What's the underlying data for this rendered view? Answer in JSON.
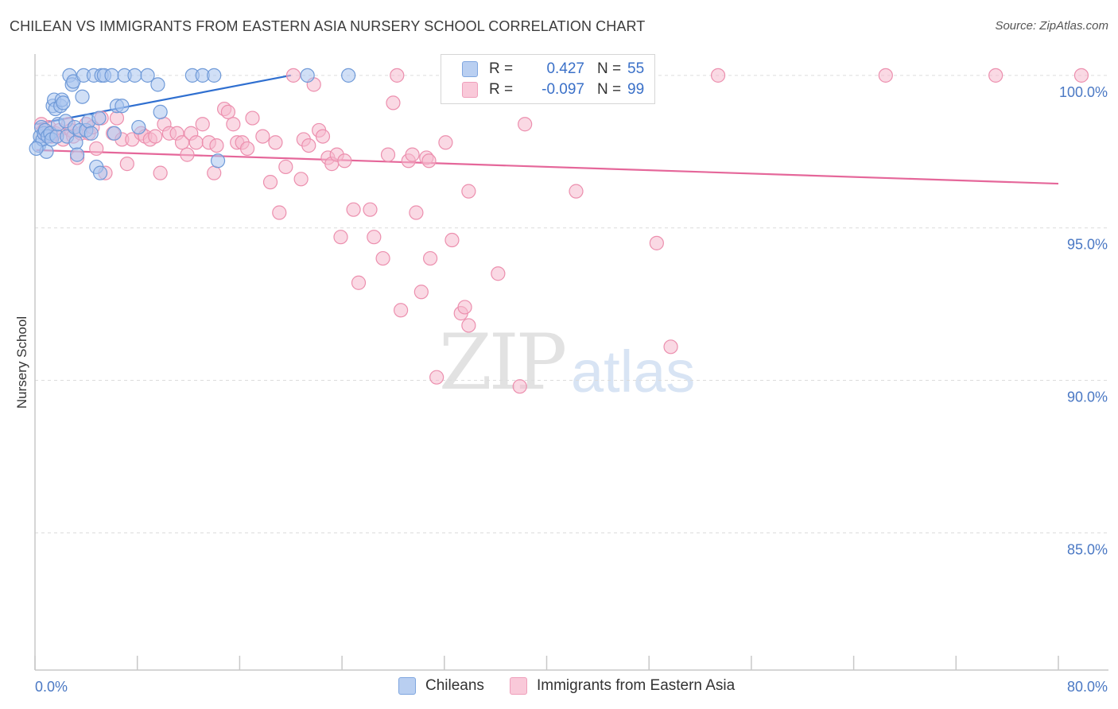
{
  "header": {
    "title": "CHILEAN VS IMMIGRANTS FROM EASTERN ASIA NURSERY SCHOOL CORRELATION CHART",
    "source": "Source: ZipAtlas.com"
  },
  "watermark": {
    "zip": "ZIP",
    "atlas": "atlas"
  },
  "legend": {
    "row1": {
      "r_label": "R =",
      "r_value": "0.427",
      "n_label": "N =",
      "n_value": "55"
    },
    "row2": {
      "r_label": "R =",
      "r_value": "-0.097",
      "n_label": "N =",
      "n_value": "99"
    }
  },
  "bottom_legend": {
    "series1": "Chileans",
    "series2": "Immigrants from Eastern Asia"
  },
  "colors": {
    "blue_fill": "#a9c4ee",
    "blue_stroke": "#6f9ad8",
    "blue_line": "#2f6fd0",
    "pink_fill": "#f6b9cd",
    "pink_stroke": "#ec8fae",
    "pink_line": "#e5679a",
    "grid": "#dcdcdc",
    "axis": "#c8c8c8",
    "tick_text": "#4a78c4"
  },
  "chart_data": {
    "type": "scatter",
    "title": "CHILEAN VS IMMIGRANTS FROM EASTERN ASIA NURSERY SCHOOL CORRELATION CHART",
    "xlabel": "",
    "ylabel": "Nursery School",
    "xlim": [
      0,
      80
    ],
    "ylim": [
      80.5,
      100.7
    ],
    "x_tick_labels": [
      "0.0%",
      "80.0%"
    ],
    "y_ticks": [
      85,
      90,
      95,
      100
    ],
    "y_tick_labels": [
      "85.0%",
      "90.0%",
      "95.0%",
      "100.0%"
    ],
    "grid": true,
    "legend_position": "top-center",
    "series": [
      {
        "name": "Chileans",
        "r": 0.427,
        "n": 55,
        "trend": {
          "x": [
            0.1,
            20.0
          ],
          "y": [
            98.4,
            100.0
          ]
        },
        "points": [
          [
            0.3,
            97.7
          ],
          [
            0.4,
            98.0
          ],
          [
            0.5,
            98.3
          ],
          [
            0.6,
            97.9
          ],
          [
            0.7,
            98.1
          ],
          [
            0.8,
            98.2
          ],
          [
            0.9,
            97.5
          ],
          [
            1.0,
            98.0
          ],
          [
            1.2,
            98.1
          ],
          [
            1.3,
            97.9
          ],
          [
            1.4,
            99.0
          ],
          [
            1.5,
            99.2
          ],
          [
            1.6,
            98.9
          ],
          [
            1.7,
            98.0
          ],
          [
            1.8,
            98.4
          ],
          [
            2.0,
            99.0
          ],
          [
            2.1,
            99.2
          ],
          [
            2.2,
            99.1
          ],
          [
            2.4,
            98.5
          ],
          [
            2.5,
            98.0
          ],
          [
            2.7,
            100.0
          ],
          [
            2.9,
            99.7
          ],
          [
            3.0,
            99.8
          ],
          [
            3.1,
            98.3
          ],
          [
            3.2,
            97.8
          ],
          [
            3.3,
            97.4
          ],
          [
            3.5,
            98.2
          ],
          [
            3.7,
            99.3
          ],
          [
            3.8,
            100.0
          ],
          [
            4.0,
            98.2
          ],
          [
            4.2,
            98.5
          ],
          [
            4.4,
            98.1
          ],
          [
            4.6,
            100.0
          ],
          [
            4.8,
            97.0
          ],
          [
            5.0,
            98.6
          ],
          [
            5.2,
            100.0
          ],
          [
            5.4,
            100.0
          ],
          [
            5.1,
            96.8
          ],
          [
            6.0,
            100.0
          ],
          [
            6.2,
            98.1
          ],
          [
            6.4,
            99.0
          ],
          [
            6.8,
            99.0
          ],
          [
            7.0,
            100.0
          ],
          [
            7.8,
            100.0
          ],
          [
            8.1,
            98.3
          ],
          [
            8.8,
            100.0
          ],
          [
            9.6,
            99.7
          ],
          [
            9.8,
            98.8
          ],
          [
            12.3,
            100.0
          ],
          [
            13.1,
            100.0
          ],
          [
            14.0,
            100.0
          ],
          [
            14.3,
            97.2
          ],
          [
            21.3,
            100.0
          ],
          [
            24.5,
            100.0
          ],
          [
            0.1,
            97.6
          ]
        ]
      },
      {
        "name": "Immigrants from Eastern Asia",
        "r": -0.097,
        "n": 99,
        "trend": {
          "x": [
            0.1,
            80.0
          ],
          "y": [
            97.55,
            96.45
          ]
        },
        "points": [
          [
            0.5,
            98.4
          ],
          [
            0.7,
            98.2
          ],
          [
            0.9,
            98.0
          ],
          [
            1.1,
            98.3
          ],
          [
            1.3,
            98.0
          ],
          [
            1.6,
            98.1
          ],
          [
            1.9,
            98.2
          ],
          [
            2.2,
            97.9
          ],
          [
            2.6,
            98.4
          ],
          [
            2.8,
            98.2
          ],
          [
            3.0,
            98.0
          ],
          [
            3.3,
            97.3
          ],
          [
            3.6,
            98.1
          ],
          [
            4.0,
            98.4
          ],
          [
            4.2,
            98.1
          ],
          [
            4.5,
            98.3
          ],
          [
            4.8,
            97.6
          ],
          [
            5.2,
            98.6
          ],
          [
            5.5,
            96.8
          ],
          [
            6.1,
            98.1
          ],
          [
            6.4,
            98.6
          ],
          [
            6.8,
            97.9
          ],
          [
            7.2,
            97.1
          ],
          [
            7.6,
            97.9
          ],
          [
            8.3,
            98.1
          ],
          [
            8.6,
            98.0
          ],
          [
            9.0,
            97.9
          ],
          [
            9.4,
            98.0
          ],
          [
            9.8,
            96.8
          ],
          [
            10.1,
            98.4
          ],
          [
            10.5,
            98.1
          ],
          [
            11.1,
            98.1
          ],
          [
            11.5,
            97.8
          ],
          [
            11.9,
            97.4
          ],
          [
            12.2,
            98.1
          ],
          [
            12.6,
            97.8
          ],
          [
            13.1,
            98.4
          ],
          [
            13.6,
            97.8
          ],
          [
            14.0,
            96.8
          ],
          [
            14.2,
            97.7
          ],
          [
            14.8,
            98.9
          ],
          [
            15.1,
            98.8
          ],
          [
            15.5,
            98.4
          ],
          [
            15.8,
            97.8
          ],
          [
            16.2,
            97.8
          ],
          [
            16.6,
            97.6
          ],
          [
            17.0,
            98.6
          ],
          [
            17.8,
            98.0
          ],
          [
            18.4,
            96.5
          ],
          [
            18.8,
            97.8
          ],
          [
            19.1,
            95.5
          ],
          [
            19.6,
            97.0
          ],
          [
            20.2,
            100.0
          ],
          [
            20.8,
            96.6
          ],
          [
            21.0,
            97.9
          ],
          [
            21.4,
            97.7
          ],
          [
            21.8,
            99.7
          ],
          [
            22.2,
            98.2
          ],
          [
            22.5,
            98.0
          ],
          [
            22.9,
            97.3
          ],
          [
            23.2,
            97.1
          ],
          [
            23.6,
            97.4
          ],
          [
            23.9,
            94.7
          ],
          [
            24.2,
            97.2
          ],
          [
            24.9,
            95.6
          ],
          [
            25.3,
            93.2
          ],
          [
            26.2,
            95.6
          ],
          [
            26.5,
            94.7
          ],
          [
            27.2,
            94.0
          ],
          [
            27.6,
            97.4
          ],
          [
            28.0,
            99.1
          ],
          [
            28.3,
            100.0
          ],
          [
            28.6,
            92.3
          ],
          [
            29.2,
            97.2
          ],
          [
            29.5,
            97.4
          ],
          [
            29.8,
            95.5
          ],
          [
            30.2,
            92.9
          ],
          [
            30.6,
            97.3
          ],
          [
            30.8,
            97.2
          ],
          [
            30.9,
            94.0
          ],
          [
            31.4,
            90.1
          ],
          [
            32.1,
            97.8
          ],
          [
            32.6,
            94.6
          ],
          [
            33.3,
            92.2
          ],
          [
            33.6,
            92.4
          ],
          [
            33.9,
            91.8
          ],
          [
            33.9,
            96.2
          ],
          [
            36.2,
            93.5
          ],
          [
            37.9,
            89.8
          ],
          [
            38.3,
            98.4
          ],
          [
            42.3,
            96.2
          ],
          [
            43.0,
            100.0
          ],
          [
            48.6,
            94.5
          ],
          [
            49.7,
            91.1
          ],
          [
            53.4,
            100.0
          ],
          [
            66.5,
            100.0
          ],
          [
            75.1,
            100.0
          ],
          [
            81.8,
            100.0
          ],
          [
            37.5,
            100.0
          ]
        ]
      }
    ]
  }
}
